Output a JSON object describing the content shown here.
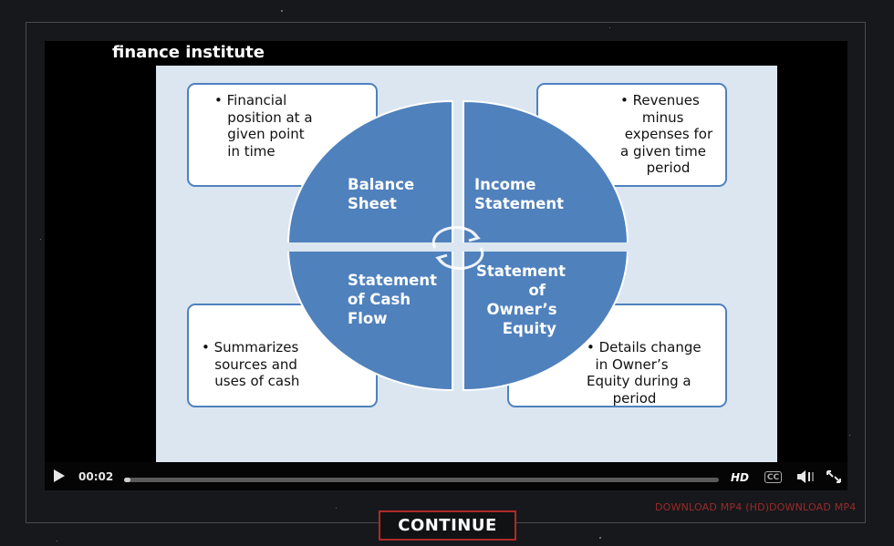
{
  "brand": {
    "title": "finance institute"
  },
  "slide": {
    "boxes": [
      {
        "text": "• Financial\n   position at a\n   given point\n   in time"
      },
      {
        "text": "• Revenues\n     minus\n expenses for\na given time\n      period"
      },
      {
        "text": "• Summarizes\n   sources and\n   uses of cash"
      },
      {
        "text": "• Details change\n  in Owner’s\nEquity during a\n      period"
      }
    ],
    "quadrants": [
      {
        "label": "Balance\nSheet"
      },
      {
        "label": "Income\nStatement"
      },
      {
        "label": "Statement\nof Cash\nFlow"
      },
      {
        "label": "Statement\n          of\n  Owner’s\n     Equity"
      }
    ]
  },
  "player": {
    "time": "00:02",
    "progress": 0.006,
    "hd_label": "HD",
    "cc_label": "CC"
  },
  "downloads": {
    "hd": "DOWNLOAD MP4 (HD)",
    "sd": "DOWNLOAD MP4"
  },
  "continue_label": "CONTINUE",
  "colors": {
    "accent": "#b02a2a",
    "quad": "#4f81bd",
    "slide_bg": "#dbe6f1"
  }
}
